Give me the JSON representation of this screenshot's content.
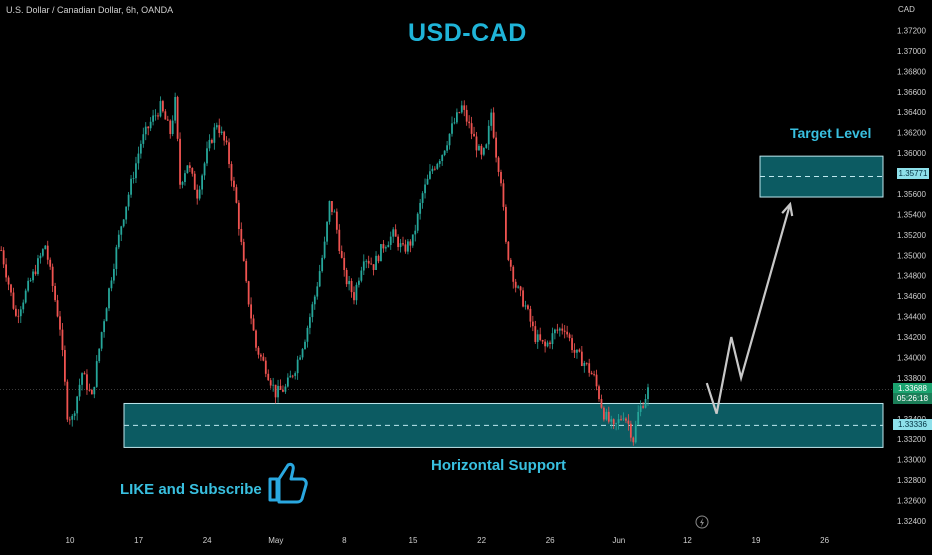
{
  "header": {
    "symbol": "U.S. Dollar / Canadian Dollar, 6h, OANDA",
    "currency": "CAD"
  },
  "annotations": {
    "title": "USD-CAD",
    "target_label": "Target Level",
    "support_label": "Horizontal Support",
    "cta_label": "LIKE and Subscribe"
  },
  "price_badges": {
    "current_price": "1.33688",
    "countdown": "05:26:18",
    "support_level": "1.33336",
    "target_level": "1.35771"
  },
  "colors": {
    "bull": "#26a69a",
    "bear": "#ef5350",
    "zone_fill": "#0e6b73",
    "zone_border": "#bfe9ef",
    "accent_text": "#39c0e0",
    "projection": "#c8c8c8"
  },
  "icons": [
    "thumbs-up-icon",
    "lightning-icon"
  ],
  "chart_data": {
    "type": "candlestick",
    "instrument": "USD/CAD",
    "timeframe": "6h",
    "y_axis": {
      "range": [
        1.324,
        1.374
      ],
      "tick_labels": [
        "1.37200",
        "1.37000",
        "1.36800",
        "1.36600",
        "1.36400",
        "1.36200",
        "1.36000",
        "1.35800",
        "1.35600",
        "1.35400",
        "1.35200",
        "1.35000",
        "1.34800",
        "1.34600",
        "1.34400",
        "1.34200",
        "1.34000",
        "1.33800",
        "1.33600",
        "1.33400",
        "1.33200",
        "1.33000",
        "1.32800",
        "1.32600",
        "1.32400"
      ]
    },
    "x_axis": {
      "tick_labels": [
        "10",
        "17",
        "24",
        "May",
        "8",
        "15",
        "22",
        "26",
        "Jun",
        "12",
        "19",
        "26"
      ],
      "tick_indices": [
        0,
        28,
        56,
        84,
        112,
        140,
        168,
        196,
        224,
        252,
        280,
        308
      ]
    },
    "close_path": [
      [
        0,
        1.3505
      ],
      [
        6,
        1.344
      ],
      [
        12,
        1.3475
      ],
      [
        18,
        1.351
      ],
      [
        24,
        1.343
      ],
      [
        27,
        1.3345
      ],
      [
        29,
        1.334
      ],
      [
        33,
        1.3385
      ],
      [
        37,
        1.336
      ],
      [
        41,
        1.3425
      ],
      [
        45,
        1.348
      ],
      [
        49,
        1.353
      ],
      [
        53,
        1.357
      ],
      [
        57,
        1.361
      ],
      [
        61,
        1.363
      ],
      [
        65,
        1.3645
      ],
      [
        69,
        1.362
      ],
      [
        71,
        1.365
      ],
      [
        73,
        1.357
      ],
      [
        76,
        1.359
      ],
      [
        80,
        1.356
      ],
      [
        84,
        1.36
      ],
      [
        88,
        1.363
      ],
      [
        92,
        1.3605
      ],
      [
        96,
        1.355
      ],
      [
        100,
        1.347
      ],
      [
        104,
        1.341
      ],
      [
        108,
        1.339
      ],
      [
        112,
        1.3365
      ],
      [
        116,
        1.337
      ],
      [
        120,
        1.339
      ],
      [
        124,
        1.342
      ],
      [
        128,
        1.346
      ],
      [
        132,
        1.351
      ],
      [
        134,
        1.355
      ],
      [
        136,
        1.354
      ],
      [
        140,
        1.348
      ],
      [
        144,
        1.346
      ],
      [
        148,
        1.35
      ],
      [
        152,
        1.349
      ],
      [
        156,
        1.351
      ],
      [
        160,
        1.352
      ],
      [
        164,
        1.3505
      ],
      [
        168,
        1.3515
      ],
      [
        172,
        1.356
      ],
      [
        176,
        1.3585
      ],
      [
        180,
        1.36
      ],
      [
        184,
        1.3625
      ],
      [
        188,
        1.3645
      ],
      [
        192,
        1.362
      ],
      [
        196,
        1.3595
      ],
      [
        198,
        1.3605
      ],
      [
        200,
        1.364
      ],
      [
        202,
        1.36
      ],
      [
        204,
        1.3575
      ],
      [
        206,
        1.351
      ],
      [
        210,
        1.347
      ],
      [
        214,
        1.345
      ],
      [
        218,
        1.342
      ],
      [
        222,
        1.341
      ],
      [
        226,
        1.3425
      ],
      [
        230,
        1.343
      ],
      [
        234,
        1.3405
      ],
      [
        238,
        1.3395
      ],
      [
        242,
        1.338
      ],
      [
        246,
        1.3345
      ],
      [
        250,
        1.333
      ],
      [
        254,
        1.3345
      ],
      [
        256,
        1.3335
      ],
      [
        258,
        1.332
      ],
      [
        260,
        1.3345
      ],
      [
        264,
        1.3368
      ]
    ],
    "zones": [
      {
        "name": "Horizontal Support",
        "from": 1.3312,
        "to": 1.3355,
        "level": 1.33336
      },
      {
        "name": "Target Level",
        "from": 1.3557,
        "to": 1.3597,
        "level": 1.35771
      }
    ],
    "current_price": 1.33688,
    "projection_path": [
      [
        264,
        1.3375
      ],
      [
        268,
        1.3345
      ],
      [
        274,
        1.342
      ],
      [
        278,
        1.338
      ],
      [
        298,
        1.355
      ]
    ]
  }
}
